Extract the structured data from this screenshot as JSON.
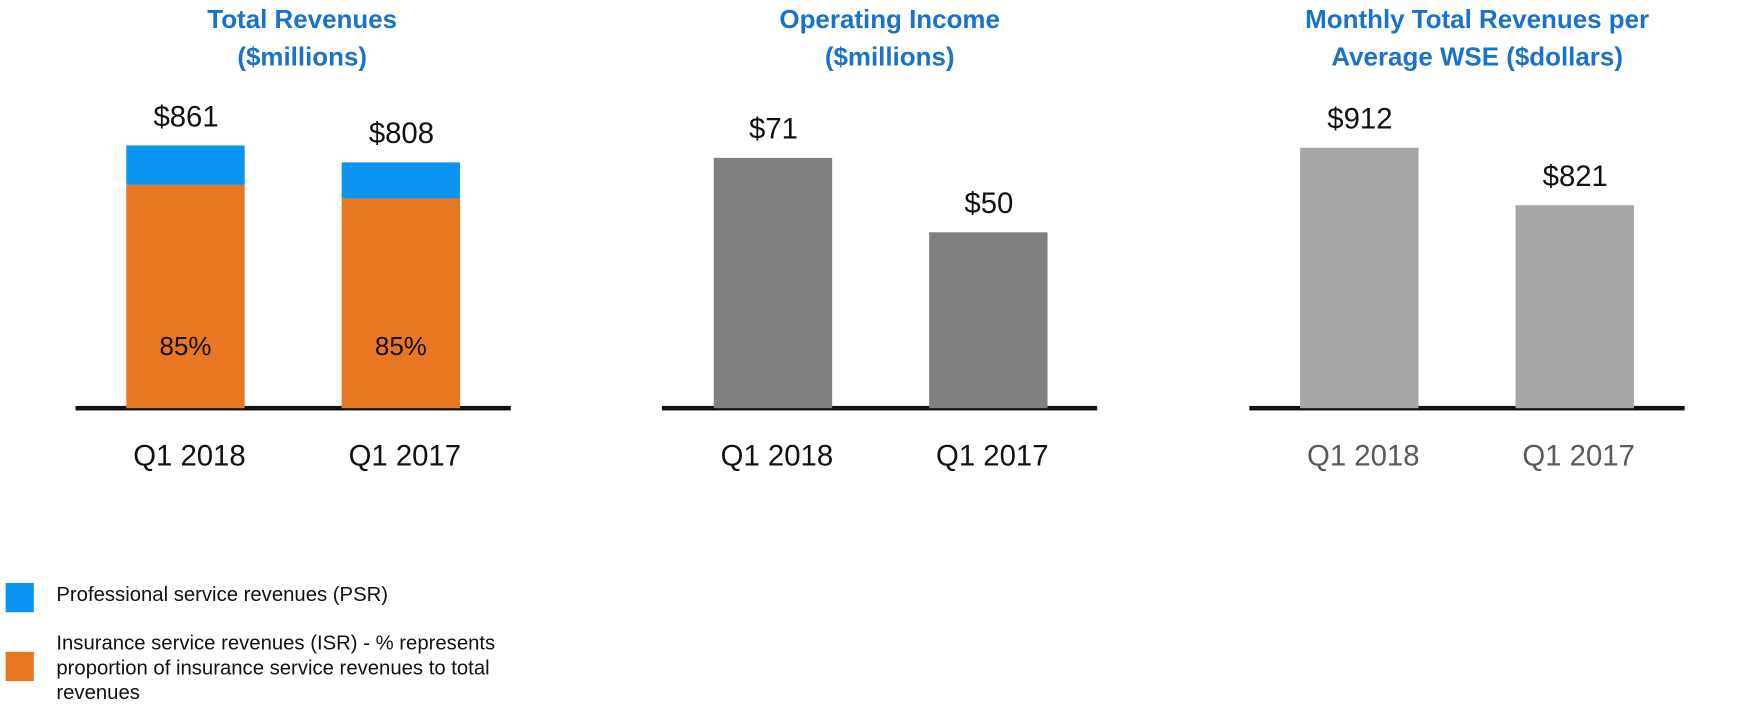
{
  "chart_data": [
    {
      "type": "bar",
      "stacked": true,
      "title": "Total Revenues ($millions)",
      "title_lines": [
        "Total Revenues",
        "($millions)"
      ],
      "categories": [
        "Q1 2018",
        "Q1 2017"
      ],
      "values": [
        861,
        808
      ],
      "value_labels": [
        "$861",
        "$808"
      ],
      "isr_share_labels": [
        "85%",
        "85%"
      ],
      "isr_share": [
        0.85,
        0.85
      ],
      "series": [
        {
          "name": "Insurance service revenues (ISR)",
          "color": "#e87722"
        },
        {
          "name": "Professional service revenues (PSR)",
          "color": "#0a96f0"
        }
      ],
      "ylim": [
        0,
        1110
      ],
      "grid": false
    },
    {
      "type": "bar",
      "title": "Operating Income ($millions)",
      "title_lines": [
        "Operating Income",
        "($millions)"
      ],
      "categories": [
        "Q1 2018",
        "Q1 2017"
      ],
      "values": [
        71,
        50
      ],
      "value_labels": [
        "$71",
        "$50"
      ],
      "color": "#808080",
      "ylim": [
        0,
        96
      ],
      "grid": false
    },
    {
      "type": "bar",
      "title": "Monthly Total Revenues per Average WSE ($dollars)",
      "title_lines": [
        "Monthly Total Revenues per",
        "Average WSE ($dollars)"
      ],
      "categories": [
        "Q1 2018",
        "Q1 2017"
      ],
      "values": [
        912,
        821
      ],
      "value_labels": [
        "$912",
        "$821"
      ],
      "color": "#a6a6a6",
      "xlabel_color": "#595959",
      "ylim": [
        500,
        1035
      ],
      "grid": false
    }
  ],
  "legend": {
    "placement": "bottom-left",
    "items": [
      {
        "label": "Professional service revenues (PSR)",
        "color": "#0a96f0"
      },
      {
        "label_lines": [
          "Insurance service revenues (ISR) - % represents",
          "proportion of insurance service revenues to total",
          "revenues"
        ],
        "color": "#e87722"
      }
    ]
  }
}
